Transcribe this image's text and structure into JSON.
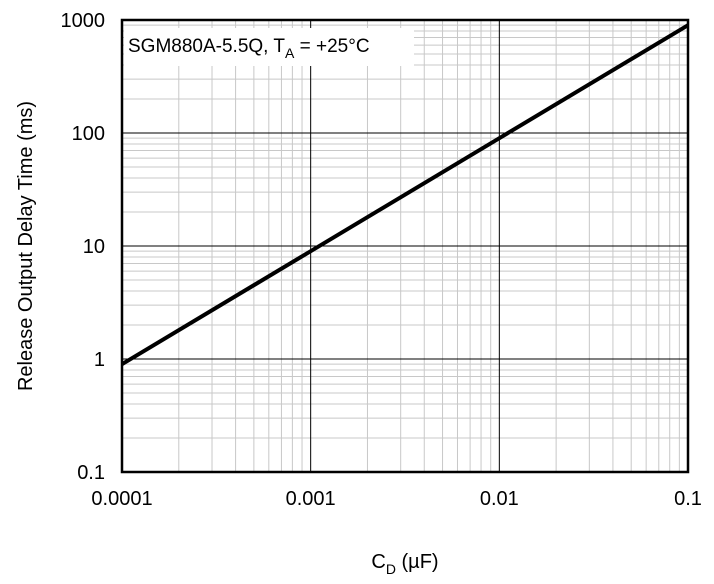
{
  "chart_data": {
    "type": "line",
    "x_scale": "log",
    "y_scale": "log",
    "xlim": [
      0.0001,
      0.1
    ],
    "ylim": [
      0.1,
      1000
    ],
    "x_ticks": [
      "0.0001",
      "0.001",
      "0.01",
      "0.1"
    ],
    "y_ticks": [
      "0.1",
      "1",
      "10",
      "100",
      "1000"
    ],
    "xlabel": {
      "main": "C",
      "sub": "D",
      "unit": " (µF)"
    },
    "ylabel": "Release  Output Delay Time (ms)",
    "annotation": {
      "pre": "SGM880A-5.5Q,  T",
      "sub": "A",
      "post": " = +25°C"
    },
    "grid": true,
    "series": [
      {
        "x": [
          0.0001,
          0.001,
          0.01,
          0.1
        ],
        "y": [
          0.9,
          9,
          90,
          900
        ]
      }
    ],
    "colors": {
      "line": "#000000",
      "major_grid": "#000000",
      "minor_grid": "#c8c8c8"
    }
  }
}
